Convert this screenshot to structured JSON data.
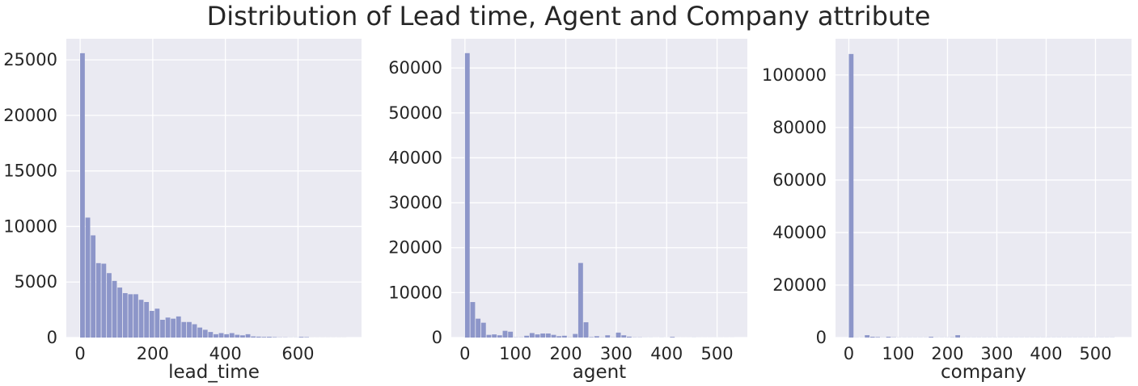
{
  "title": "Distribution of Lead time, Agent and Company attribute",
  "colors": {
    "bar": "#8d96c9",
    "plot_bg": "#eaeaf2",
    "grid": "#ffffff",
    "text": "#262626"
  },
  "chart_data": [
    {
      "type": "bar",
      "subtype": "histogram",
      "xlabel": "lead_time",
      "ylabel": "",
      "xlim": [
        -38,
        775
      ],
      "ylim": [
        0,
        26900
      ],
      "xticks": [
        0,
        200,
        400,
        600
      ],
      "yticks": [
        0,
        5000,
        10000,
        15000,
        20000,
        25000
      ],
      "grid": true,
      "bin_width": 14.7,
      "bins_start": [
        0,
        14.7,
        29.4,
        44.1,
        58.8,
        73.5,
        88.2,
        102.9,
        117.6,
        132.3,
        147,
        161.7,
        176.4,
        191.1,
        205.8,
        220.5,
        235.2,
        249.9,
        264.6,
        279.3,
        294,
        308.7,
        323.4,
        338.1,
        352.8,
        367.5,
        382.2,
        396.9,
        411.6,
        426.3,
        441,
        455.7,
        470.4,
        485.1,
        499.8,
        514.5,
        529.2,
        543.9,
        558.6,
        573.3,
        588,
        602.7,
        617.4,
        632.1,
        646.8,
        661.5,
        676.2,
        690.9,
        705.6,
        720.3
      ],
      "values": [
        25600,
        10800,
        9200,
        6700,
        6650,
        5800,
        5100,
        4500,
        4000,
        3900,
        3900,
        3400,
        3200,
        2400,
        2600,
        1600,
        1800,
        1700,
        1900,
        1400,
        1400,
        1200,
        900,
        700,
        500,
        300,
        400,
        300,
        400,
        250,
        200,
        300,
        100,
        80,
        60,
        70,
        40,
        20,
        20,
        10,
        10,
        60,
        40,
        5,
        5,
        5,
        5,
        5,
        5,
        5
      ]
    },
    {
      "type": "bar",
      "subtype": "histogram",
      "xlabel": "agent",
      "ylabel": "",
      "xlim": [
        -27,
        560
      ],
      "ylim": [
        0,
        66500
      ],
      "xticks": [
        0,
        100,
        200,
        300,
        400,
        500
      ],
      "yticks": [
        0,
        10000,
        20000,
        30000,
        40000,
        50000,
        60000
      ],
      "grid": true,
      "bin_width": 10.7,
      "bins_start": [
        0,
        10.7,
        21.4,
        32.1,
        42.8,
        53.5,
        64.2,
        74.9,
        85.6,
        96.3,
        107,
        117.7,
        128.4,
        139.1,
        149.8,
        160.5,
        171.2,
        181.9,
        192.6,
        203.3,
        214,
        224.7,
        235.4,
        246.1,
        256.8,
        267.5,
        278.2,
        288.9,
        299.6,
        310.3,
        321,
        331.7,
        342.4,
        353.1,
        363.8,
        374.5,
        385.2,
        395.9,
        406.6,
        417.3,
        428,
        438.7,
        449.4,
        460.1,
        470.8,
        481.5,
        492.2,
        502.9,
        513.6,
        524.3
      ],
      "values": [
        63300,
        7900,
        4200,
        3300,
        600,
        700,
        500,
        1500,
        1300,
        50,
        50,
        400,
        1000,
        700,
        900,
        900,
        600,
        300,
        400,
        50,
        800,
        16600,
        3400,
        100,
        300,
        50,
        500,
        50,
        1100,
        500,
        200,
        50,
        50,
        20,
        20,
        10,
        20,
        10,
        150,
        10,
        10,
        10,
        20,
        10,
        10,
        10,
        10,
        10,
        10,
        10
      ]
    },
    {
      "type": "bar",
      "subtype": "histogram",
      "xlabel": "company",
      "ylabel": "",
      "xlim": [
        -27,
        573
      ],
      "ylim": [
        0,
        113800
      ],
      "xticks": [
        0,
        100,
        200,
        300,
        400,
        500
      ],
      "yticks": [
        0,
        20000,
        40000,
        60000,
        80000,
        100000
      ],
      "grid": true,
      "bin_width": 10.8,
      "bins_start": [
        0,
        10.8,
        21.6,
        32.4,
        43.2,
        54,
        64.8,
        75.6,
        86.4,
        97.2,
        108,
        118.8,
        129.6,
        140.4,
        151.2,
        162,
        172.8,
        183.6,
        194.4,
        205.2,
        216,
        226.8,
        237.6,
        248.4,
        259.2,
        270,
        280.8,
        291.6,
        302.4,
        313.2,
        324,
        334.8,
        345.6,
        356.4,
        367.2,
        378,
        388.8,
        399.6,
        410.4,
        421.2,
        432,
        442.8,
        453.6,
        464.4,
        475.2,
        486,
        496.8,
        507.6,
        518.4,
        529.2
      ],
      "values": [
        108000,
        50,
        50,
        900,
        300,
        200,
        50,
        300,
        100,
        50,
        50,
        50,
        50,
        50,
        50,
        300,
        50,
        50,
        50,
        100,
        900,
        50,
        50,
        50,
        50,
        50,
        50,
        50,
        50,
        50,
        50,
        50,
        50,
        50,
        50,
        50,
        50,
        50,
        50,
        50,
        50,
        50,
        50,
        50,
        50,
        50,
        50,
        50,
        50,
        50
      ]
    }
  ]
}
